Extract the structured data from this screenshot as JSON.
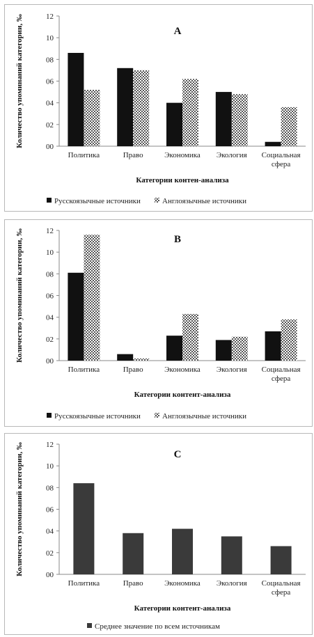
{
  "chart_data": [
    {
      "id": "A",
      "type": "bar",
      "title": "A",
      "xlabel": "Категории контен-анализа",
      "ylabel": "Количество упоминаний категории, ‰",
      "categories": [
        "Политика",
        "Право",
        "Экономика",
        "Экология",
        "Социальная сфера"
      ],
      "ytick_labels": [
        "00",
        "02",
        "04",
        "06",
        "08",
        "10",
        "12"
      ],
      "ylim": [
        0,
        12
      ],
      "series": [
        {
          "name": "Русскоязычные источники",
          "style": "solid",
          "color": "#111111",
          "values": [
            8.6,
            7.2,
            4.0,
            5.0,
            0.4
          ]
        },
        {
          "name": "Англоязычные источники",
          "style": "checker",
          "color": "#6a6a6a",
          "values": [
            5.2,
            7.0,
            6.2,
            4.8,
            3.6
          ]
        }
      ]
    },
    {
      "id": "B",
      "type": "bar",
      "title": "B",
      "xlabel": "Категории контент-анализа",
      "ylabel": "Количество упоминаний категории, ‰",
      "categories": [
        "Политика",
        "Право",
        "Экономика",
        "Экология",
        "Социальная сфера"
      ],
      "ytick_labels": [
        "00",
        "02",
        "04",
        "06",
        "08",
        "10",
        "12"
      ],
      "ylim": [
        0,
        12
      ],
      "series": [
        {
          "name": "Русскоязычные источники",
          "style": "solid",
          "color": "#111111",
          "values": [
            8.1,
            0.6,
            2.3,
            1.9,
            2.7
          ]
        },
        {
          "name": "Англоязычные источники",
          "style": "checker",
          "color": "#6a6a6a",
          "values": [
            11.6,
            0.2,
            4.3,
            2.2,
            3.8
          ]
        }
      ]
    },
    {
      "id": "C",
      "type": "bar",
      "title": "C",
      "xlabel": "Категории контент-анализа",
      "ylabel": "Количество упоминаний категории, ‰",
      "categories": [
        "Политика",
        "Право",
        "Экономика",
        "Экология",
        "Социальная сфера"
      ],
      "ytick_labels": [
        "00",
        "02",
        "04",
        "06",
        "08",
        "10",
        "12"
      ],
      "ylim": [
        0,
        12
      ],
      "series": [
        {
          "name": "Среднее значение по всем источникам",
          "style": "solid",
          "color": "#3a3a3a",
          "values": [
            8.4,
            3.8,
            4.2,
            3.5,
            2.6
          ]
        }
      ]
    }
  ]
}
